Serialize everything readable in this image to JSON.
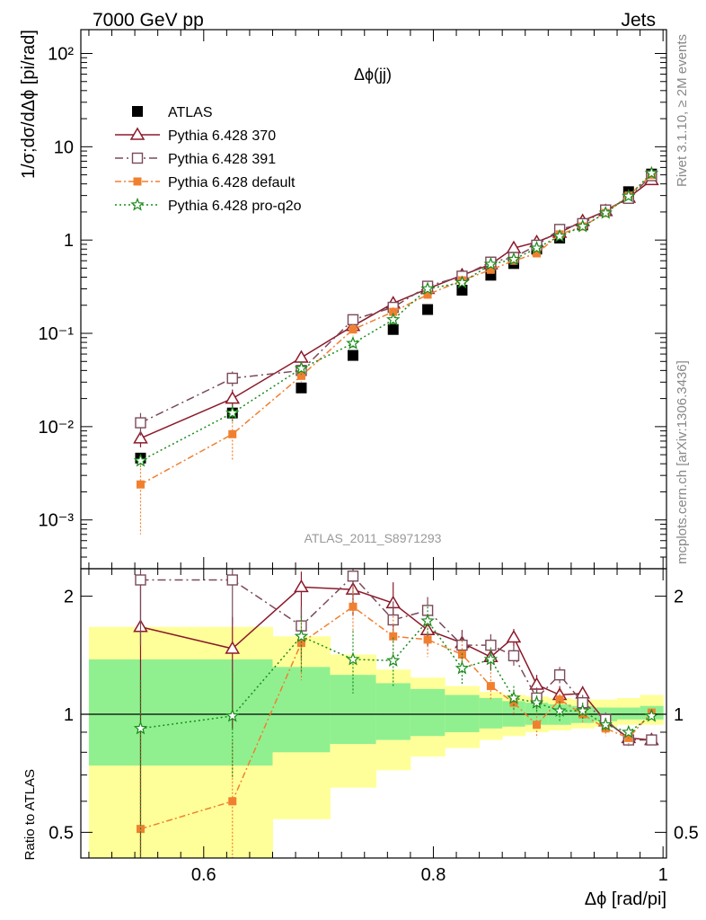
{
  "header": {
    "left": "7000 GeV pp",
    "right": "Jets",
    "side_top": "Rivet 3.1.10, ≥ 2M events",
    "side_bottom": "mcplots.cern.ch [arXiv:1306.3436]",
    "analysis": "ATLAS_2011_S8971293"
  },
  "colors": {
    "atlas": "#000000",
    "p370": "#8b1a2b",
    "p391": "#7a4a5a",
    "pdefault": "#f08030",
    "pq2o": "#1a8a1a",
    "band_inner": "#90f090",
    "band_outer": "#ffff99"
  },
  "chart_data": [
    {
      "type": "line",
      "title": "Δϕ(jj)",
      "ylabel": "1/σ;dσ/dΔϕ [pi/rad]",
      "yscale": "log",
      "xlim": [
        0.493,
        1.003
      ],
      "ylim": [
        0.0003,
        180
      ],
      "legend_position": "top-left",
      "y_ticks": [
        {
          "value": 0.001,
          "label": "10⁻³"
        },
        {
          "value": 0.01,
          "label": "10⁻²"
        },
        {
          "value": 0.1,
          "label": "10⁻¹"
        },
        {
          "value": 1,
          "label": "1"
        },
        {
          "value": 10,
          "label": "10"
        },
        {
          "value": 100,
          "label": "10²"
        }
      ],
      "x": [
        0.545,
        0.625,
        0.685,
        0.73,
        0.765,
        0.795,
        0.825,
        0.85,
        0.87,
        0.89,
        0.91,
        0.93,
        0.95,
        0.97,
        0.99
      ],
      "series": [
        {
          "name": "ATLAS",
          "key": "atlas",
          "marker": "square-filled",
          "values": [
            0.0046,
            0.014,
            0.026,
            0.058,
            0.11,
            0.18,
            0.29,
            0.42,
            0.56,
            0.8,
            1.05,
            1.45,
            2.1,
            3.3,
            5.1
          ]
        },
        {
          "name": "Pythia 6.428 370",
          "key": "p370",
          "marker": "triangle-open",
          "dash": "solid",
          "values": [
            0.0075,
            0.02,
            0.055,
            0.12,
            0.21,
            0.3,
            0.42,
            0.55,
            0.82,
            0.95,
            1.2,
            1.6,
            2.05,
            2.85,
            4.4
          ],
          "err": [
            0.0015,
            0.005,
            0.008,
            0.015,
            0.02,
            0.025,
            0.03,
            0.04,
            0.05,
            0.06,
            0.07,
            0.08,
            0.09,
            0.1,
            0.15
          ]
        },
        {
          "name": "Pythia 6.428 391",
          "key": "p391",
          "marker": "square-open",
          "dash": "dashdot",
          "values": [
            0.011,
            0.033,
            0.04,
            0.14,
            0.19,
            0.32,
            0.41,
            0.58,
            0.65,
            0.88,
            1.3,
            1.5,
            2.1,
            2.8,
            4.9
          ],
          "err": [
            0.003,
            0.006,
            0.008,
            0.015,
            0.02,
            0.025,
            0.03,
            0.04,
            0.05,
            0.06,
            0.07,
            0.08,
            0.09,
            0.1,
            0.15
          ]
        },
        {
          "name": "Pythia 6.428 default",
          "key": "pdefault",
          "marker": "square-filled-small",
          "dash": "dashdot2",
          "values": [
            0.0024,
            0.0083,
            0.035,
            0.11,
            0.17,
            0.26,
            0.37,
            0.48,
            0.6,
            0.72,
            1.15,
            1.4,
            1.95,
            3.0,
            5.0
          ],
          "err_low": [
            0.0017,
            0.004,
            0.005,
            0.015,
            0.02,
            0.025,
            0.03,
            0.04,
            0.05,
            0.06,
            0.07,
            0.08,
            0.09,
            0.1,
            0.15
          ],
          "err_high": [
            0.0015,
            0.004,
            0.005,
            0.015,
            0.02,
            0.025,
            0.03,
            0.04,
            0.05,
            0.06,
            0.07,
            0.08,
            0.09,
            0.1,
            0.15
          ]
        },
        {
          "name": "Pythia 6.428 pro-q2o",
          "key": "pq2o",
          "marker": "star-open",
          "dash": "dotted",
          "values": [
            0.0043,
            0.014,
            0.042,
            0.078,
            0.14,
            0.3,
            0.35,
            0.55,
            0.62,
            0.82,
            1.1,
            1.4,
            1.95,
            2.95,
            5.2
          ],
          "err": [
            0.0006,
            0.003,
            0.006,
            0.01,
            0.015,
            0.025,
            0.03,
            0.04,
            0.05,
            0.06,
            0.07,
            0.08,
            0.09,
            0.1,
            0.15
          ]
        }
      ]
    },
    {
      "type": "line",
      "ylabel": "Ratio to ATLAS",
      "xlabel": "Δϕ [rad/pi]",
      "yscale": "log",
      "xlim": [
        0.493,
        1.003
      ],
      "ylim": [
        0.43,
        2.35
      ],
      "x_ticks": [
        {
          "value": 0.6,
          "label": "0.6"
        },
        {
          "value": 0.8,
          "label": "0.8"
        },
        {
          "value": 1,
          "label": "1"
        }
      ],
      "y_ticks": [
        {
          "value": 0.5,
          "label": "0.5"
        },
        {
          "value": 1,
          "label": "1"
        },
        {
          "value": 2,
          "label": "2"
        }
      ],
      "bands": {
        "edges": [
          0.5,
          0.59,
          0.66,
          0.71,
          0.75,
          0.78,
          0.81,
          0.84,
          0.86,
          0.88,
          0.9,
          0.92,
          0.94,
          0.96,
          0.98,
          1.0
        ],
        "inner_low": [
          0.74,
          0.74,
          0.8,
          0.84,
          0.86,
          0.88,
          0.9,
          0.92,
          0.93,
          0.94,
          0.94,
          0.95,
          0.96,
          0.97,
          0.97
        ],
        "inner_high": [
          1.38,
          1.38,
          1.32,
          1.26,
          1.2,
          1.16,
          1.12,
          1.1,
          1.08,
          1.07,
          1.06,
          1.05,
          1.04,
          1.04,
          1.05
        ],
        "outer_low": [
          0.43,
          0.43,
          0.54,
          0.65,
          0.72,
          0.78,
          0.82,
          0.86,
          0.88,
          0.9,
          0.91,
          0.92,
          0.93,
          0.94,
          0.94
        ],
        "outer_high": [
          1.67,
          1.67,
          1.58,
          1.42,
          1.3,
          1.24,
          1.18,
          1.14,
          1.12,
          1.11,
          1.1,
          1.09,
          1.09,
          1.1,
          1.12
        ]
      },
      "x": [
        0.545,
        0.625,
        0.685,
        0.73,
        0.765,
        0.795,
        0.825,
        0.85,
        0.87,
        0.89,
        0.91,
        0.93,
        0.95,
        0.97,
        0.99
      ],
      "series": [
        {
          "name": "Pythia 6.428 370",
          "key": "p370",
          "marker": "triangle-open",
          "dash": "solid",
          "values": [
            1.67,
            1.47,
            2.11,
            2.08,
            1.92,
            1.64,
            1.52,
            1.4,
            1.57,
            1.19,
            1.12,
            1.13,
            0.96,
            0.87,
            0.86
          ],
          "err_low": [
            1.3,
            0.55,
            0.35,
            0.3,
            0.25,
            0.15,
            0.12,
            0.1,
            0.08,
            0.07,
            0.06,
            0.05,
            0.04,
            0.03,
            0.02
          ],
          "err_high": [
            0.6,
            0.3,
            0.2,
            0.2,
            0.25,
            0.15,
            0.12,
            0.1,
            0.08,
            0.07,
            0.06,
            0.05,
            0.04,
            0.03,
            0.02
          ]
        },
        {
          "name": "Pythia 6.428 391",
          "key": "p391",
          "marker": "square-open",
          "dash": "dashdot",
          "values": [
            2.2,
            2.2,
            1.68,
            2.25,
            1.74,
            1.84,
            1.5,
            1.5,
            1.41,
            1.1,
            1.26,
            1.07,
            0.97,
            0.86,
            0.86
          ],
          "err_low": [
            0.7,
            0.5,
            0.3,
            0.3,
            0.2,
            0.15,
            0.12,
            0.1,
            0.08,
            0.07,
            0.06,
            0.05,
            0.04,
            0.03,
            0.02
          ],
          "err_high": [
            0.3,
            0.3,
            0.2,
            0.2,
            0.2,
            0.15,
            0.12,
            0.1,
            0.08,
            0.07,
            0.06,
            0.05,
            0.04,
            0.03,
            0.02
          ]
        },
        {
          "name": "Pythia 6.428 default",
          "key": "pdefault",
          "marker": "square-filled-small",
          "dash": "dashdot2",
          "values": [
            0.51,
            0.6,
            1.52,
            1.88,
            1.58,
            1.55,
            1.42,
            1.18,
            1.07,
            0.94,
            1.09,
            1.0,
            0.92,
            0.87,
            1.01
          ],
          "err_low": [
            0.4,
            0.25,
            0.3,
            0.25,
            0.2,
            0.15,
            0.12,
            0.1,
            0.08,
            0.07,
            0.06,
            0.05,
            0.04,
            0.03,
            0.02
          ],
          "err_high": [
            0.4,
            0.25,
            0.2,
            0.25,
            0.2,
            0.15,
            0.12,
            0.1,
            0.08,
            0.07,
            0.06,
            0.05,
            0.04,
            0.03,
            0.02
          ]
        },
        {
          "name": "Pythia 6.428 pro-q2o",
          "key": "pq2o",
          "marker": "star-open",
          "dash": "dotted",
          "values": [
            0.92,
            0.99,
            1.58,
            1.38,
            1.37,
            1.73,
            1.31,
            1.38,
            1.1,
            1.07,
            1.02,
            1.02,
            0.94,
            0.9,
            0.99
          ],
          "err_low": [
            0.6,
            0.3,
            0.3,
            0.25,
            0.2,
            0.15,
            0.12,
            0.1,
            0.08,
            0.07,
            0.06,
            0.05,
            0.04,
            0.03,
            0.02
          ],
          "err_high": [
            0.3,
            0.3,
            0.2,
            0.25,
            0.2,
            0.15,
            0.12,
            0.1,
            0.08,
            0.07,
            0.06,
            0.05,
            0.04,
            0.03,
            0.02
          ]
        }
      ]
    }
  ]
}
